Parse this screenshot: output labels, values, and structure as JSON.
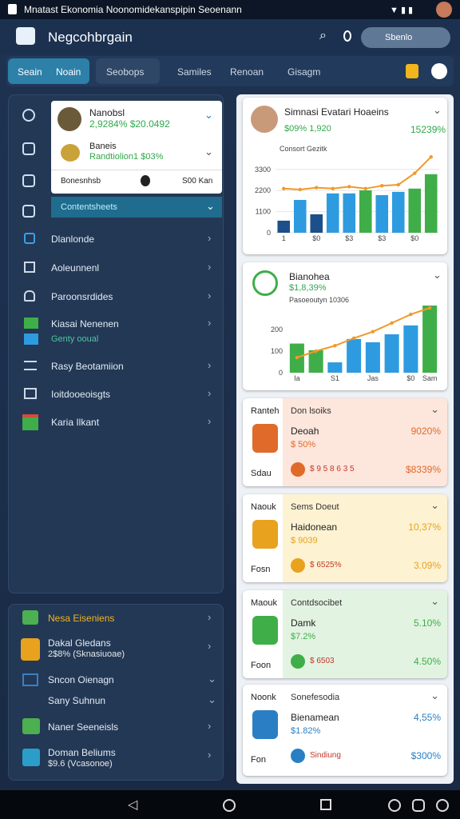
{
  "status_bar": {
    "title": "Mnatast Ekonomia Noonomidekanspipin Seoenann"
  },
  "app_bar": {
    "title": "Negcohbrgain",
    "search": "Sbenlo"
  },
  "tabs": [
    "Seain",
    "Noain",
    "Seobops",
    "Samiles",
    "Renoan",
    "Gisagm"
  ],
  "sidebar": {
    "dropdown": [
      {
        "title": "Nanobsl",
        "value": "2,9284% $20.0492"
      },
      {
        "title": "Baneis",
        "value": "Randtiolion1 $03%"
      }
    ],
    "footer_left": "Bonesnhsb",
    "footer_right": "S00 Kan",
    "active": "Contentsheets",
    "items": [
      {
        "title": "Dlanlonde"
      },
      {
        "title": "Aoleunnenl"
      },
      {
        "title": "Paroonsrdides"
      },
      {
        "title": "Kiasai Nenenen",
        "subtitle": "Genty ooual"
      },
      {
        "title": "Rasy Beotamiion"
      },
      {
        "title": "Ioitdooeoisgts"
      },
      {
        "title": "Karia Ilkant"
      }
    ]
  },
  "lower_panel": {
    "items": [
      {
        "title": "Nesa Eiseniens"
      },
      {
        "title": "Dakal Gledans",
        "subtitle": "2$8% (Sknasiuoae)"
      },
      {
        "title": "Sncon Oienagn"
      },
      {
        "title": "Sany Suhnun"
      },
      {
        "title": "Naner Seeneisls"
      },
      {
        "title": "Doman Beliums",
        "subtitle": "$9.6 (Vcasonoe)"
      }
    ]
  },
  "cards": [
    {
      "title": "Simnasi Evatari Hoaeins",
      "subtitle": "$09% 1,920",
      "value": "15239%",
      "chart": {
        "type": "bar",
        "caption": "Consort Gezitk",
        "categories": [
          "1",
          null,
          "$0",
          null,
          "$3",
          null,
          "$3",
          null,
          "$0",
          null
        ],
        "values": [
          630,
          1710,
          960,
          2050,
          2050,
          2210,
          1960,
          2130,
          2300,
          3050
        ],
        "colors": [
          "#1d4f8a",
          "#2e9be0",
          "#1d4f8a",
          "#2e9be0",
          "#2e9be0",
          "#3fae49",
          "#2e9be0",
          "#2e9be0",
          "#3fae49",
          "#3fae49"
        ],
        "line": {
          "color": "#ef9a2a",
          "values": [
            2300,
            2250,
            2350,
            2300,
            2400,
            2300,
            2450,
            2500,
            3100,
            3950
          ]
        },
        "ylim": [
          0,
          4000
        ],
        "yticks": [
          0,
          1100,
          2200,
          3300
        ],
        "grid": true
      }
    },
    {
      "title": "Bianohea",
      "subtitle": "$1,8,39%",
      "chart": {
        "type": "bar",
        "caption": "Pasoeoutyn 10306",
        "categories": [
          "Ia",
          null,
          "S1",
          null,
          "Jas",
          null,
          "$0",
          "Sam"
        ],
        "values": [
          135,
          104,
          48,
          156,
          141,
          178,
          219,
          311
        ],
        "colors": [
          "#3fae49",
          "#3fae49",
          "#2e9be0",
          "#2e9be0",
          "#2e9be0",
          "#2e9be0",
          "#2e9be0",
          "#3fae49"
        ],
        "line": {
          "color": "#ef9a2a",
          "values": [
            70,
            100,
            125,
            160,
            190,
            230,
            270,
            300
          ]
        },
        "ylim": [
          0,
          320
        ],
        "yticks": [
          0,
          100,
          200
        ],
        "grid": false
      }
    },
    {
      "side_top": "Ranteh",
      "side_bottom": "Sdau",
      "title": "Don lsoiks",
      "name": "Deoah",
      "sub": "$ 50%",
      "value": "9020%",
      "row_left": "$ 9 5 8 6 3 5",
      "row_right": "$8339%"
    },
    {
      "side_top": "Naouk",
      "side_bottom": "Fosn",
      "title": "Sems Doeut",
      "name": "Haidonean",
      "sub": "$ 9039",
      "value": "10,37%",
      "row_left": "$ 6525%",
      "row_right": "3.09%"
    },
    {
      "side_top": "Maouk",
      "side_bottom": "Foon",
      "title": "Contdsocibet",
      "name": "Damk",
      "sub": "$7.2%",
      "value": "5.10%",
      "row_left": "$ 6503",
      "row_right": "4.50%"
    },
    {
      "side_top": "Noonk",
      "side_bottom": "Fon",
      "title": "Sonefesodia",
      "name": "Bienamean",
      "sub": "$1.82%",
      "value": "4,55%",
      "row_left": "Sindiung",
      "row_right": "$300%"
    }
  ]
}
